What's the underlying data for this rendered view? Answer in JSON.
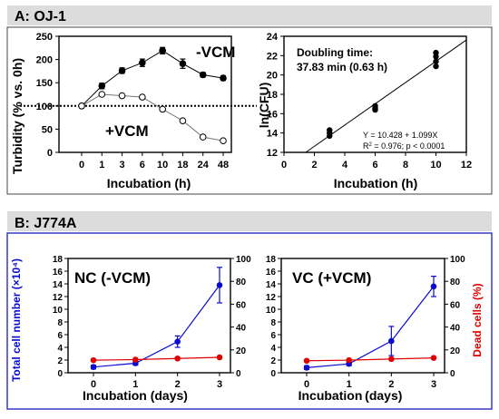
{
  "panel_a": {
    "header": "A: OJ-1",
    "header_bg": "#dcdcdc"
  },
  "panel_b": {
    "header": "B: J774A",
    "header_bg": "#dcdcdc",
    "frame_color": "#2c2cc8"
  },
  "colors": {
    "blue": "#0a0ad2",
    "red": "#e00000",
    "black": "#000000"
  },
  "chart_data": [
    {
      "id": "turbidity",
      "type": "line",
      "xlabel": "Incubation (h)",
      "ylabel": "Turbidity (% vs. 0h)",
      "categories": [
        "0",
        "1",
        "3",
        "6",
        "10",
        "18",
        "24",
        "48"
      ],
      "ylim": [
        0,
        250
      ],
      "yticks": [
        0,
        50,
        100,
        150,
        200,
        250
      ],
      "reference_line": 100,
      "annotations": [
        "-VCM",
        "+VCM"
      ],
      "series": [
        {
          "name": "-VCM",
          "marker": "filled",
          "values": [
            100,
            143,
            176,
            193,
            219,
            191,
            167,
            160
          ],
          "errors": [
            0,
            6,
            6,
            8,
            7,
            10,
            5,
            5
          ]
        },
        {
          "name": "+VCM",
          "marker": "open",
          "values": [
            100,
            125,
            122,
            119,
            93,
            68,
            33,
            25
          ],
          "errors": [
            0,
            0,
            0,
            0,
            0,
            0,
            0,
            0
          ]
        }
      ]
    },
    {
      "id": "cfu",
      "type": "scatter",
      "xlabel": "Incubation (h)",
      "ylabel": "ln(CFU)",
      "xlim": [
        0,
        12
      ],
      "ylim": [
        12,
        24
      ],
      "xticks": [
        0,
        2,
        4,
        6,
        8,
        10,
        12
      ],
      "yticks": [
        12,
        14,
        16,
        18,
        20,
        22,
        24
      ],
      "annotation_title": "Doubling time:",
      "annotation_value": "37.83 min (0.63 h)",
      "fit_equation": "Y = 10.428 + 1.099X",
      "fit_r2_label": "R",
      "fit_r2_sup": "2",
      "fit_r2_rest": " = 0.976; p < 0.0001",
      "fit": {
        "intercept": 10.428,
        "slope": 1.099
      },
      "points": [
        {
          "x": 3,
          "y": 13.7
        },
        {
          "x": 3,
          "y": 14.0
        },
        {
          "x": 3,
          "y": 14.3
        },
        {
          "x": 6,
          "y": 16.4
        },
        {
          "x": 6,
          "y": 16.6
        },
        {
          "x": 6,
          "y": 16.8
        },
        {
          "x": 10,
          "y": 20.9
        },
        {
          "x": 10,
          "y": 21.4
        },
        {
          "x": 10,
          "y": 21.9
        },
        {
          "x": 10,
          "y": 22.3
        }
      ]
    },
    {
      "id": "nc",
      "type": "line",
      "title": "NC (-VCM)",
      "xlabel": "Incubation (days)",
      "ylabel_left": "Total cell number (×10⁴)",
      "x": [
        0,
        1,
        2,
        3
      ],
      "ylim_left": [
        0,
        18
      ],
      "yticks_left": [
        0,
        2,
        4,
        6,
        8,
        10,
        12,
        14,
        16,
        18
      ],
      "ylim_right": [
        0,
        100
      ],
      "yticks_right": [
        0,
        20,
        40,
        60,
        80,
        100
      ],
      "series": [
        {
          "axis": "left",
          "color": "blue",
          "values": [
            0.9,
            1.5,
            4.9,
            13.8
          ],
          "errors": [
            0.3,
            0.3,
            0.9,
            2.8
          ]
        },
        {
          "axis": "right",
          "color": "red",
          "values": [
            11,
            11.5,
            12.5,
            13.5
          ],
          "errors": [
            0,
            0,
            0,
            0
          ]
        }
      ]
    },
    {
      "id": "vc",
      "type": "line",
      "title": "VC (+VCM)",
      "xlabel": "Incubation (days)",
      "ylabel_right": "Dead cells (%)",
      "x": [
        0,
        1,
        2,
        3
      ],
      "ylim_left": [
        0,
        18
      ],
      "yticks_left": [
        0,
        2,
        4,
        6,
        8,
        10,
        12,
        14,
        16,
        18
      ],
      "ylim_right": [
        0,
        100
      ],
      "yticks_right": [
        0,
        20,
        40,
        60,
        80,
        100
      ],
      "series": [
        {
          "axis": "left",
          "color": "blue",
          "values": [
            0.8,
            1.4,
            5.0,
            13.6
          ],
          "errors": [
            0.3,
            0.3,
            2.3,
            1.6
          ]
        },
        {
          "axis": "right",
          "color": "red",
          "values": [
            10.5,
            11,
            12,
            13
          ],
          "errors": [
            0,
            0,
            0,
            0
          ]
        }
      ]
    }
  ]
}
